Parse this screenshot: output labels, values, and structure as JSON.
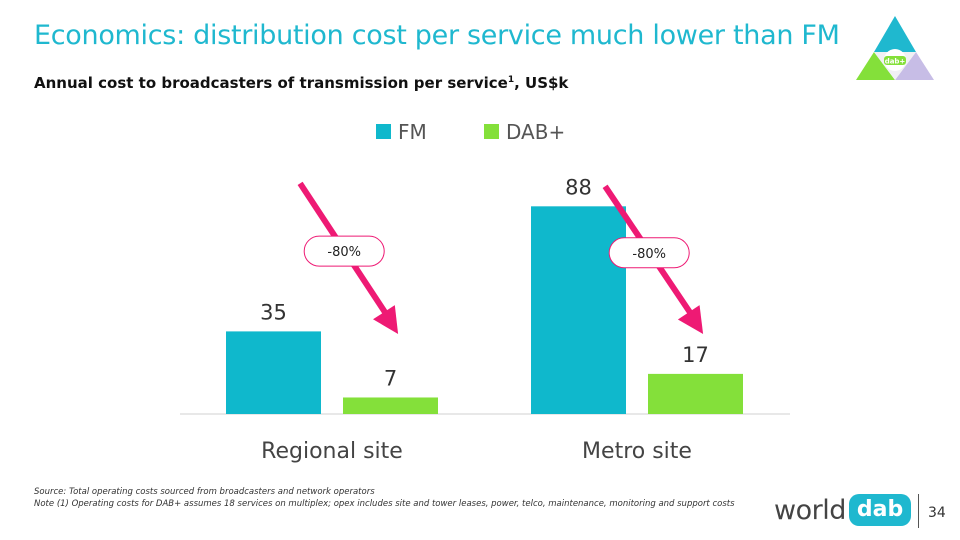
{
  "header": {
    "title": "Economics: distribution cost per service much lower than FM",
    "subtitle": "Annual cost to broadcasters of transmission per service",
    "subtitle_note_marker": "1",
    "subtitle_units": ", US$k"
  },
  "logo": {
    "badge_text": "dab+"
  },
  "chart_data": {
    "type": "bar",
    "categories": [
      "Regional site",
      "Metro site"
    ],
    "series": [
      {
        "name": "FM",
        "color": "#0fb8cc",
        "values": [
          35,
          88
        ]
      },
      {
        "name": "DAB+",
        "color": "#84e03a",
        "values": [
          7,
          17
        ]
      }
    ],
    "ylim": [
      0,
      100
    ],
    "legend_position": "top-center",
    "grid": false,
    "annotations": [
      {
        "category": "Regional site",
        "label": "-80%"
      },
      {
        "category": "Metro site",
        "label": "-80%"
      }
    ],
    "arrow_color": "#ee1a74"
  },
  "footer": {
    "source": "Source: Total operating costs sourced from broadcasters and network operators",
    "note": "Note (1) Operating costs for DAB+ assumes 18 services on multiplex; opex includes site and tower leases, power, telco, maintenance, monitoring and support costs",
    "brand_world": "world",
    "brand_dab": "dab",
    "page_number": "34"
  }
}
